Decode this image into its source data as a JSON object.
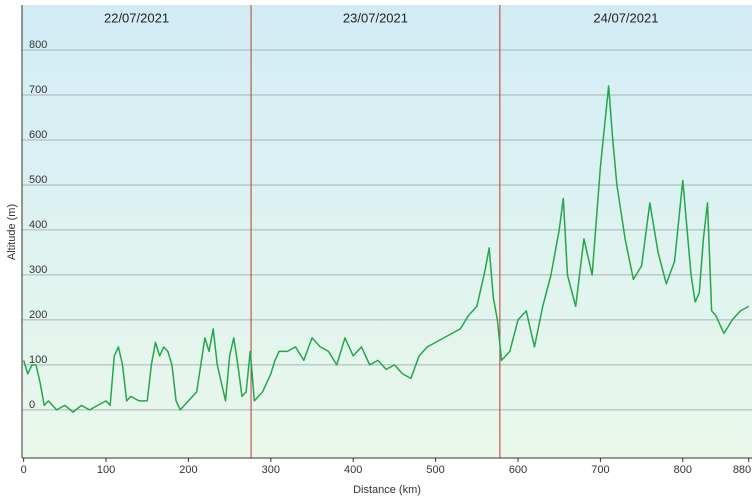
{
  "chart_data": {
    "type": "line",
    "ylabel": "Altitude (m)",
    "xlabel": "Distance  (km)",
    "x": [
      0,
      5,
      10,
      15,
      20,
      25,
      30,
      40,
      50,
      60,
      70,
      80,
      90,
      100,
      105,
      110,
      115,
      120,
      125,
      130,
      140,
      150,
      155,
      160,
      165,
      170,
      175,
      180,
      185,
      190,
      200,
      210,
      215,
      220,
      225,
      230,
      235,
      240,
      245,
      250,
      255,
      260,
      265,
      270,
      275,
      280,
      290,
      300,
      305,
      310,
      320,
      330,
      340,
      350,
      360,
      370,
      380,
      390,
      400,
      410,
      420,
      430,
      440,
      450,
      460,
      470,
      480,
      490,
      500,
      510,
      520,
      530,
      540,
      550,
      560,
      565,
      570,
      575,
      580,
      590,
      600,
      610,
      620,
      630,
      640,
      650,
      655,
      660,
      670,
      680,
      690,
      700,
      710,
      715,
      720,
      730,
      740,
      750,
      760,
      770,
      780,
      790,
      800,
      810,
      815,
      820,
      825,
      830,
      835,
      840,
      850,
      860,
      870,
      880
    ],
    "values": [
      110,
      80,
      100,
      100,
      60,
      10,
      20,
      0,
      10,
      -5,
      10,
      0,
      10,
      20,
      10,
      120,
      140,
      100,
      20,
      30,
      20,
      20,
      100,
      150,
      120,
      140,
      130,
      100,
      20,
      0,
      20,
      40,
      100,
      160,
      130,
      180,
      100,
      60,
      20,
      120,
      160,
      100,
      30,
      40,
      130,
      20,
      40,
      80,
      110,
      130,
      130,
      140,
      110,
      160,
      140,
      130,
      100,
      160,
      120,
      140,
      100,
      110,
      90,
      100,
      80,
      70,
      120,
      140,
      150,
      160,
      170,
      180,
      210,
      230,
      310,
      360,
      250,
      200,
      110,
      130,
      200,
      220,
      140,
      230,
      300,
      400,
      470,
      300,
      230,
      380,
      300,
      540,
      720,
      600,
      500,
      380,
      290,
      320,
      460,
      350,
      280,
      330,
      510,
      300,
      240,
      260,
      380,
      460,
      220,
      210,
      170,
      200,
      220,
      230
    ],
    "color": "#22a84a",
    "xlim": [
      -2,
      884
    ],
    "ylim": [
      -107,
      900
    ],
    "xticks": [
      0,
      100,
      200,
      300,
      400,
      500,
      600,
      700,
      800,
      880
    ],
    "yticks": [
      0,
      100,
      200,
      300,
      400,
      500,
      600,
      700,
      800
    ],
    "grid": true,
    "sections": [
      {
        "label": "22/07/2021",
        "start": -2,
        "end": 276
      },
      {
        "label": "23/07/2021",
        "start": 276,
        "end": 578
      },
      {
        "label": "24/07/2021",
        "start": 578,
        "end": 884
      }
    ],
    "divider_color": "#c0392b"
  }
}
